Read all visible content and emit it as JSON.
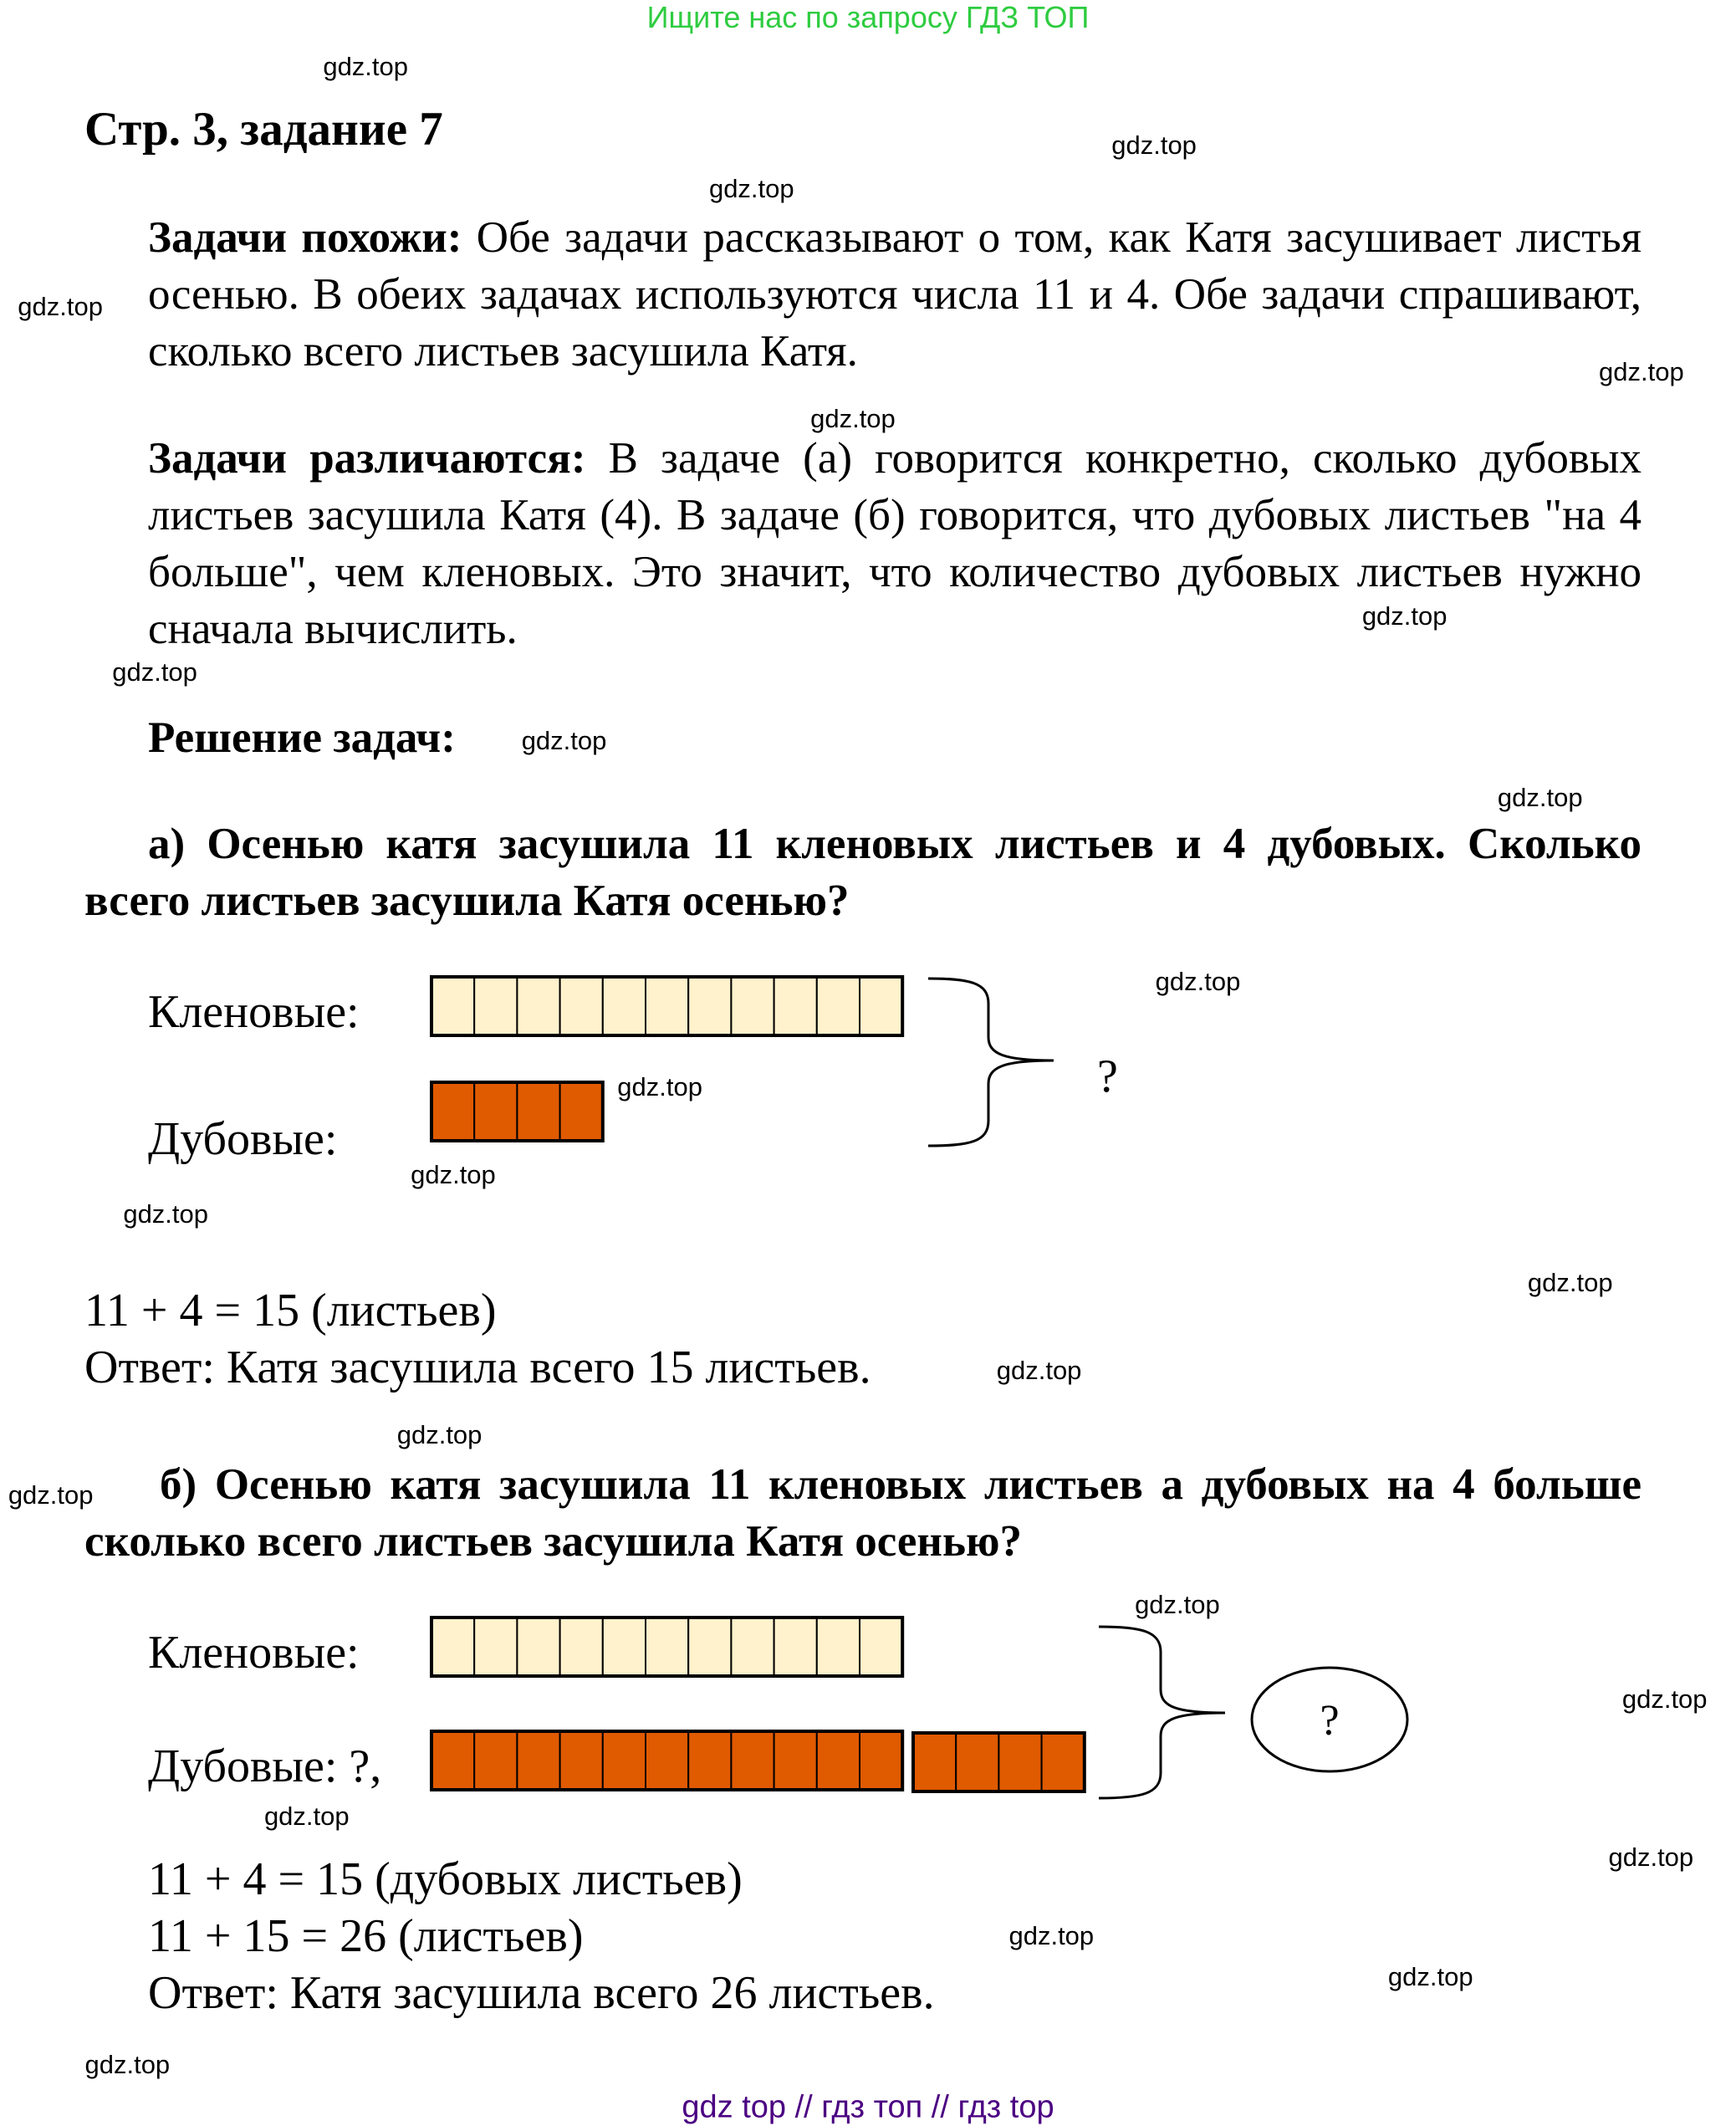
{
  "banner": "Ищите нас по запросу ГДЗ ТОП",
  "title": "Стр. 3, задание 7",
  "similar": {
    "bold": "Задачи похожи:",
    "text": " Обе задачи рассказывают о том, как Катя засушивает листья осенью. В обеих задачах используются числа 11 и 4. Обе задачи спрашивают, сколько всего листьев засушила Катя."
  },
  "different": {
    "bold": "Задачи различаются:",
    "text": " В задаче (а) говорится конкретно, сколько дубовых листьев засушила Катя (4). В задаче (б) говорится, что дубовых листьев \"на 4 больше\", чем кленовых. Это значит, что количество дубовых листьев нужно сначала вычислить."
  },
  "solution_heading": "Решение задач:",
  "task_a": {
    "question": "а) Осенью катя засушила 11 кленовых листьев и 4 дубовых. Сколько всего листьев засушила Катя осенью?",
    "maple_label": "Кленовые:",
    "oak_label": "Дубовые:",
    "maple_count": 11,
    "oak_count": 4,
    "result_mark": "?",
    "equation": "11 + 4 = 15 (листьев)",
    "answer": "Ответ: Катя засушила всего 15 листьев."
  },
  "task_b": {
    "question": "б) Осенью катя засушила 11 кленовых листьев а дубовых на 4 больше сколько всего листьев засушила Катя осенью?",
    "maple_label": "Кленовые:",
    "oak_label": "Дубовые: ?,",
    "maple_count": 11,
    "oak_extra": 4,
    "result_mark": "?",
    "equation1": "11 + 4 = 15 (дубовых листьев)",
    "equation2": "11 + 15 = 26 (листьев)",
    "answer": "Ответ: Катя засушила всего 26 листьев."
  },
  "watermark": "gdz.top",
  "footer": "gdz top  //  гдз топ  //  гдз top",
  "colors": {
    "maple": "#FFF2CC",
    "oak": "#E05A00",
    "banner": "#2ECC40",
    "footer": "#4B0082"
  }
}
